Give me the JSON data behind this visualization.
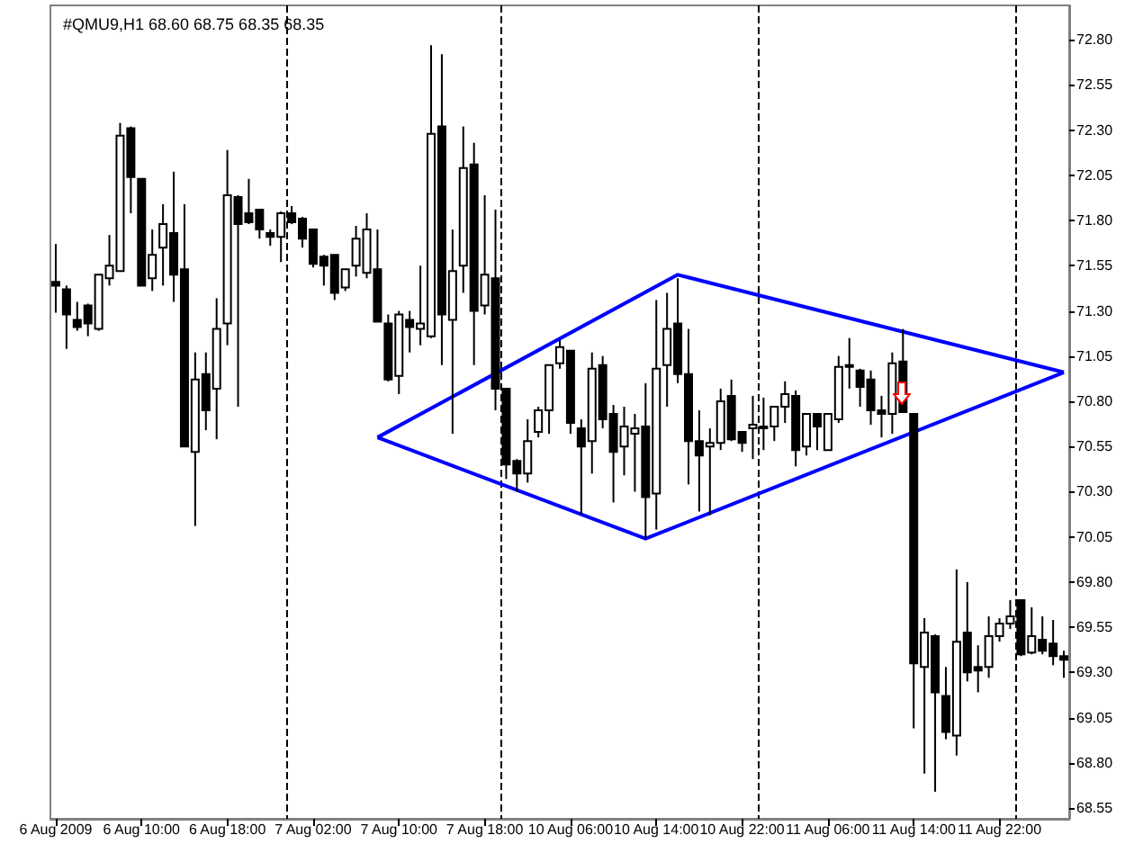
{
  "chart_data": {
    "type": "candlestick",
    "title": "#QMU9,H1 68.60 68.75 68.35 68.35",
    "categories": [
      "6 Aug 2009",
      null,
      null,
      null,
      null,
      null,
      null,
      null,
      "6 Aug 10:00",
      null,
      null,
      null,
      null,
      null,
      null,
      null,
      "6 Aug 18:00",
      null,
      null,
      null,
      null,
      null,
      null,
      null,
      "7 Aug 02:00",
      null,
      null,
      null,
      null,
      null,
      null,
      null,
      "7 Aug 10:00",
      null,
      null,
      null,
      null,
      null,
      null,
      null,
      "7 Aug 18:00",
      null,
      null,
      null,
      null,
      null,
      null,
      null,
      "10 Aug 06:00",
      null,
      null,
      null,
      null,
      null,
      null,
      null,
      "10 Aug 14:00",
      null,
      null,
      null,
      null,
      null,
      null,
      null,
      "10 Aug 22:00",
      null,
      null,
      null,
      null,
      null,
      null,
      null,
      "11 Aug 06:00",
      null,
      null,
      null,
      null,
      null,
      null,
      null,
      "11 Aug 14:00",
      null,
      null,
      null,
      null,
      null,
      null,
      null,
      "11 Aug 22:00",
      null,
      null,
      null,
      null,
      null,
      null
    ],
    "grid": "x",
    "ylim": [
      68.49,
      72.99
    ],
    "yticks": [
      68.55,
      {
        "value": 68.8,
        "label": "68.80"
      },
      69.05,
      {
        "value": 69.3,
        "label": "69.30"
      },
      69.55,
      {
        "value": 69.8,
        "label": "69.80"
      },
      70.05,
      {
        "value": 70.3,
        "label": "70.30"
      },
      70.55,
      {
        "value": 70.8,
        "label": "70.80"
      },
      71.05,
      {
        "value": 71.3,
        "label": "71.30"
      },
      71.55,
      {
        "value": 71.8,
        "label": "71.80"
      },
      72.05,
      {
        "value": 72.3,
        "label": "72.30"
      },
      72.55,
      {
        "value": 72.8,
        "label": "72.80"
      }
    ],
    "series": [
      {
        "color": "#000000",
        "ohlc": [
          [
            71.46,
            71.67,
            71.29,
            71.44
          ],
          [
            71.42,
            71.44,
            71.09,
            71.28
          ],
          [
            71.25,
            71.35,
            71.19,
            71.21
          ],
          [
            71.33,
            71.34,
            71.16,
            71.23
          ],
          [
            71.2,
            71.5,
            71.19,
            71.5
          ],
          [
            71.48,
            71.72,
            71.44,
            71.55
          ],
          [
            71.52,
            72.34,
            71.52,
            72.27
          ],
          [
            72.31,
            72.32,
            71.84,
            72.04
          ],
          [
            72.03,
            72.03,
            71.44,
            71.44
          ],
          [
            71.48,
            71.75,
            71.41,
            71.61
          ],
          [
            71.65,
            71.89,
            71.44,
            71.78
          ],
          [
            71.73,
            72.07,
            71.35,
            71.5
          ],
          [
            71.53,
            71.89,
            70.55,
            70.55
          ],
          [
            70.52,
            71.07,
            70.11,
            70.92
          ],
          [
            70.95,
            71.07,
            70.64,
            70.75
          ],
          [
            70.87,
            71.37,
            70.59,
            71.2
          ],
          [
            71.23,
            72.19,
            71.11,
            71.94
          ],
          [
            71.93,
            71.94,
            70.77,
            71.78
          ],
          [
            71.84,
            72.03,
            71.78,
            71.79
          ],
          [
            71.86,
            71.86,
            71.7,
            71.75
          ],
          [
            71.73,
            71.75,
            71.66,
            71.71
          ],
          [
            71.71,
            71.85,
            71.57,
            71.84
          ],
          [
            71.84,
            71.88,
            71.78,
            71.79
          ],
          [
            71.81,
            71.82,
            71.65,
            71.7
          ],
          [
            71.75,
            71.75,
            71.54,
            71.56
          ],
          [
            71.6,
            71.61,
            71.44,
            71.55
          ],
          [
            71.61,
            71.61,
            71.36,
            71.4
          ],
          [
            71.43,
            71.53,
            71.41,
            71.53
          ],
          [
            71.55,
            71.77,
            71.49,
            71.7
          ],
          [
            71.51,
            71.84,
            71.48,
            71.75
          ],
          [
            71.53,
            71.75,
            71.24,
            71.24
          ],
          [
            71.23,
            71.28,
            70.91,
            70.92
          ],
          [
            70.94,
            71.3,
            70.84,
            71.28
          ],
          [
            71.25,
            71.3,
            71.07,
            71.21
          ],
          [
            71.2,
            71.55,
            71.11,
            71.23
          ],
          [
            71.16,
            72.77,
            71.15,
            72.28
          ],
          [
            72.32,
            72.72,
            71.0,
            71.28
          ],
          [
            71.25,
            71.75,
            70.62,
            71.52
          ],
          [
            71.55,
            72.32,
            71.4,
            72.09
          ],
          [
            72.11,
            72.23,
            71.0,
            71.3
          ],
          [
            71.33,
            71.94,
            71.28,
            71.5
          ],
          [
            71.48,
            71.86,
            70.75,
            70.87
          ],
          [
            70.87,
            70.87,
            70.37,
            70.45
          ],
          [
            70.47,
            70.48,
            70.3,
            70.4
          ],
          [
            70.4,
            70.7,
            70.35,
            70.58
          ],
          [
            70.63,
            70.77,
            70.6,
            70.75
          ],
          [
            70.75,
            71.0,
            70.62,
            71.0
          ],
          [
            71.01,
            71.14,
            70.98,
            71.1
          ],
          [
            71.08,
            71.08,
            70.62,
            70.68
          ],
          [
            70.65,
            70.7,
            70.17,
            70.55
          ],
          [
            70.58,
            71.07,
            70.4,
            70.98
          ],
          [
            71.0,
            71.05,
            70.65,
            70.7
          ],
          [
            70.73,
            70.78,
            70.24,
            70.52
          ],
          [
            70.55,
            70.77,
            70.39,
            70.66
          ],
          [
            70.62,
            70.73,
            70.3,
            70.65
          ],
          [
            70.66,
            70.9,
            70.04,
            70.27
          ],
          [
            70.29,
            71.36,
            70.09,
            70.98
          ],
          [
            71.0,
            71.4,
            70.77,
            71.2
          ],
          [
            71.23,
            71.48,
            70.9,
            70.95
          ],
          [
            70.95,
            71.2,
            70.34,
            70.58
          ],
          [
            70.58,
            70.75,
            70.19,
            70.5
          ],
          [
            70.55,
            70.65,
            70.17,
            70.57
          ],
          [
            70.57,
            70.87,
            70.53,
            70.8
          ],
          [
            70.83,
            70.92,
            70.58,
            70.59
          ],
          [
            70.63,
            70.63,
            70.52,
            70.57
          ],
          [
            70.65,
            70.83,
            70.48,
            70.67
          ],
          [
            70.66,
            70.82,
            70.53,
            70.65
          ],
          [
            70.66,
            70.77,
            70.58,
            70.77
          ],
          [
            70.77,
            70.91,
            70.68,
            70.84
          ],
          [
            70.83,
            70.86,
            70.44,
            70.53
          ],
          [
            70.55,
            70.73,
            70.5,
            70.73
          ],
          [
            70.73,
            70.73,
            70.53,
            70.66
          ],
          [
            70.53,
            70.73,
            70.53,
            70.73
          ],
          [
            70.7,
            71.05,
            70.68,
            70.99
          ],
          [
            71.0,
            71.15,
            70.87,
            71.0
          ],
          [
            70.97,
            70.98,
            70.77,
            70.88
          ],
          [
            70.92,
            70.97,
            70.67,
            70.75
          ],
          [
            70.75,
            70.83,
            70.6,
            70.73
          ],
          [
            70.73,
            71.07,
            70.62,
            71.01
          ],
          [
            71.02,
            71.2,
            70.74,
            70.74
          ],
          [
            70.73,
            70.73,
            68.99,
            69.35
          ],
          [
            69.33,
            69.6,
            68.74,
            69.52
          ],
          [
            69.5,
            69.51,
            68.64,
            69.19
          ],
          [
            69.17,
            69.33,
            68.93,
            68.97
          ],
          [
            68.95,
            69.87,
            68.84,
            69.47
          ],
          [
            69.52,
            69.8,
            69.25,
            69.3
          ],
          [
            69.33,
            69.45,
            69.19,
            69.31
          ],
          [
            69.33,
            69.61,
            69.27,
            69.5
          ],
          [
            69.5,
            69.6,
            69.47,
            69.57
          ],
          [
            69.57,
            69.7,
            69.54,
            69.61
          ],
          [
            69.7,
            69.7,
            69.39,
            69.4
          ],
          [
            69.41,
            69.66,
            69.4,
            69.5
          ],
          [
            69.48,
            69.61,
            69.4,
            69.42
          ],
          [
            69.46,
            69.59,
            69.34,
            69.39
          ],
          [
            69.39,
            69.42,
            69.27,
            69.37
          ]
        ]
      },
      {
        "type": "line",
        "color": "#0000ff",
        "values": [
          null,
          null,
          null,
          null,
          null,
          null,
          null,
          null,
          null,
          null,
          null,
          null,
          null,
          null,
          null,
          null,
          null,
          null,
          null,
          null,
          null,
          null,
          null,
          null,
          null,
          null,
          null,
          null,
          null,
          null,
          70.6,
          null,
          null,
          null,
          null,
          null,
          null,
          null,
          null,
          null,
          null,
          null,
          null,
          null,
          null,
          null,
          null,
          null,
          null,
          null,
          null,
          null,
          null,
          null,
          null,
          null,
          null,
          null,
          71.5,
          null,
          null,
          null,
          null,
          null,
          null,
          null,
          null,
          null,
          null,
          null,
          null,
          null,
          null,
          null,
          null,
          null,
          null,
          null,
          null,
          null,
          null,
          null,
          null,
          null,
          null,
          null,
          null,
          null,
          null,
          null,
          null,
          null,
          null,
          null,
          70.96
        ]
      },
      {
        "type": "line",
        "color": "#0000ff",
        "values": [
          null,
          null,
          null,
          null,
          null,
          null,
          null,
          null,
          null,
          null,
          null,
          null,
          null,
          null,
          null,
          null,
          null,
          null,
          null,
          null,
          null,
          null,
          null,
          null,
          null,
          null,
          null,
          null,
          null,
          null,
          70.6,
          null,
          null,
          null,
          null,
          null,
          null,
          null,
          null,
          null,
          null,
          null,
          null,
          null,
          null,
          null,
          null,
          null,
          null,
          null,
          null,
          null,
          null,
          null,
          null,
          70.04,
          null,
          null,
          null,
          null,
          null,
          null,
          null,
          null,
          null,
          null,
          null,
          null,
          null,
          null,
          null,
          null,
          null,
          null,
          null,
          null,
          null,
          null,
          null,
          null,
          null,
          null,
          null,
          null,
          null,
          null,
          null,
          null,
          null,
          null,
          null,
          null,
          null,
          null,
          70.96
        ]
      }
    ]
  }
}
